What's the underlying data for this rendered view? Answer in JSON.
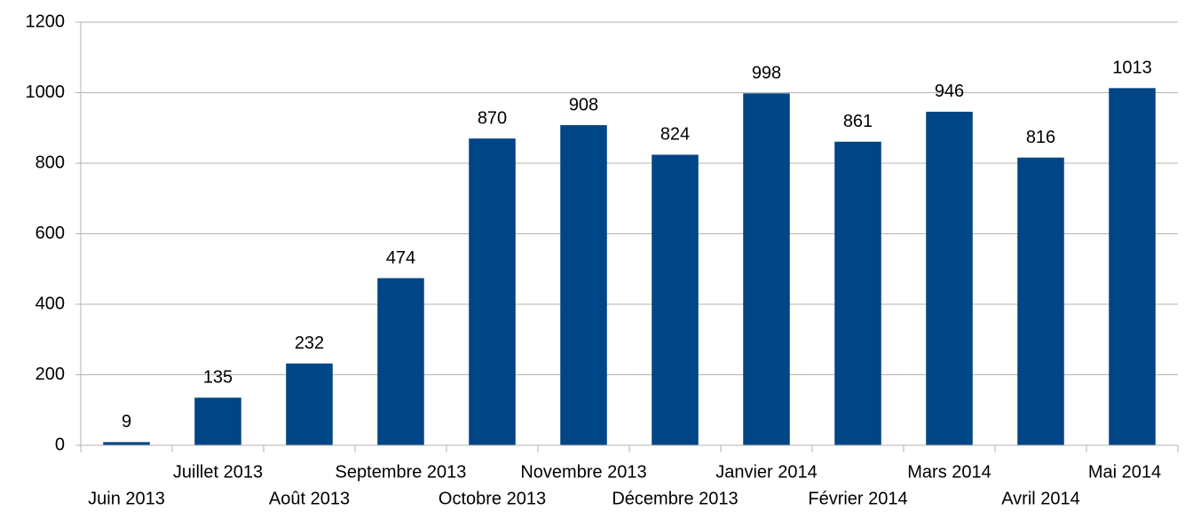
{
  "chart_data": {
    "type": "bar",
    "categories": [
      "Juin 2013",
      "Juillet 2013",
      "Août 2013",
      "Septembre 2013",
      "Octobre 2013",
      "Novembre 2013",
      "Décembre 2013",
      "Janvier 2014",
      "Février 2014",
      "Mars 2014",
      "Avril 2014",
      "Mai 2014"
    ],
    "values": [
      9,
      135,
      232,
      474,
      870,
      908,
      824,
      998,
      861,
      946,
      816,
      1013
    ],
    "color": "#004586",
    "ylim": [
      0,
      1200
    ],
    "yticks": [
      0,
      200,
      400,
      600,
      800,
      1000,
      1200
    ],
    "grid": true
  }
}
